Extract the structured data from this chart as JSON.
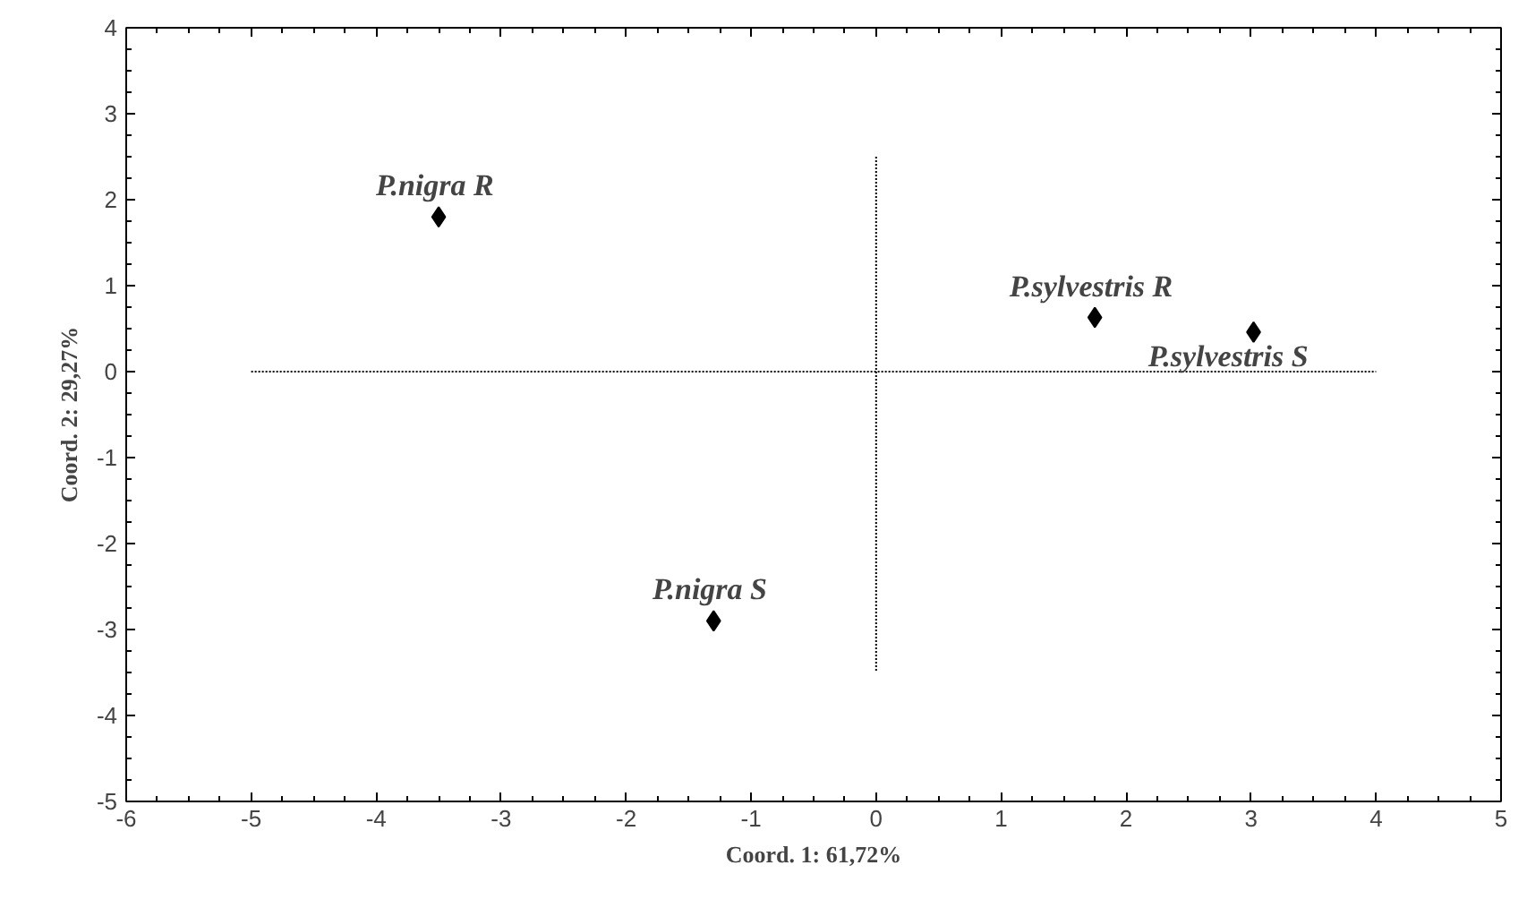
{
  "chart_data": {
    "type": "scatter",
    "xlabel": "Coord. 1: 61,72%",
    "ylabel": "Coord. 2: 29,27%",
    "xlim": [
      -6,
      5
    ],
    "ylim": [
      -5,
      4
    ],
    "xticks": [
      -6,
      -5,
      -4,
      -3,
      -2,
      -1,
      0,
      1,
      2,
      3,
      4,
      5
    ],
    "yticks": [
      -5,
      -4,
      -3,
      -2,
      -1,
      0,
      1,
      2,
      3,
      4
    ],
    "grid": false,
    "marker": "diamond",
    "series": [
      {
        "color": "#000000",
        "x": [
          -3.5,
          -1.3,
          1.75,
          3.02
        ],
        "values": [
          1.8,
          -2.9,
          0.63,
          0.46
        ]
      },
      {
        "type": "line",
        "color": "#000000",
        "line_style": "dotted",
        "marker": "none",
        "x": [
          -5,
          4
        ],
        "values": [
          0,
          0
        ]
      },
      {
        "type": "line",
        "color": "#000000",
        "line_style": "dotted",
        "marker": "none",
        "x": [
          0,
          0
        ],
        "values": [
          2.5,
          -3.5
        ]
      }
    ],
    "annotations": [
      {
        "text": "P.nigra  R",
        "x": -3.5,
        "y": 1.8
      },
      {
        "text": "P.nigra  S",
        "x": -1.3,
        "y": -2.9
      },
      {
        "text": "P.sylvestris  R",
        "x": 1.75,
        "y": 0.63
      },
      {
        "text": "P.sylvestris  S",
        "x": 3.02,
        "y": 0.46
      }
    ]
  }
}
